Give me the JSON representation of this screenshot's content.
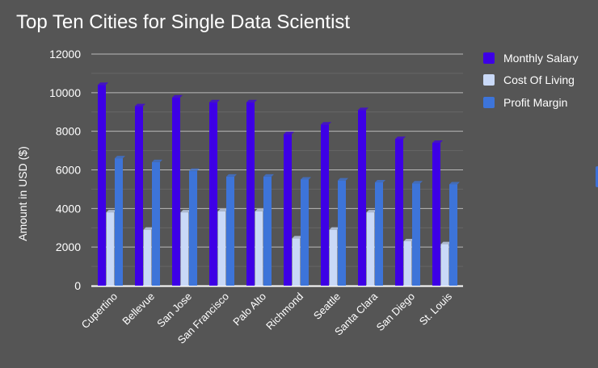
{
  "chart_data": {
    "type": "bar",
    "title": "Top Ten Cities for Single Data Scientist",
    "xlabel": "",
    "ylabel": "Amount in USD ($)",
    "ylim": [
      0,
      12000
    ],
    "yticks": [
      0,
      2000,
      4000,
      6000,
      8000,
      10000,
      12000
    ],
    "grid": true,
    "legend_position": "right",
    "categories": [
      "Cupertino",
      "Bellevue",
      "San Jose",
      "San Francisco",
      "Palo Alto",
      "Richmond",
      "Seattle",
      "Santa Clara",
      "San Diego",
      "St. Louis"
    ],
    "series": [
      {
        "name": "Monthly Salary",
        "color": "#3d00e6",
        "values": [
          10400,
          9300,
          9750,
          9500,
          9500,
          7850,
          8350,
          9100,
          7600,
          7400
        ]
      },
      {
        "name": "Cost Of Living",
        "color": "#c9d9f7",
        "values": [
          3800,
          2900,
          3800,
          3850,
          3850,
          2450,
          2900,
          3800,
          2300,
          2150
        ]
      },
      {
        "name": "Profit Margin",
        "color": "#3d74d9",
        "values": [
          6600,
          6400,
          5950,
          5650,
          5650,
          5500,
          5450,
          5350,
          5300,
          5250
        ]
      }
    ]
  }
}
